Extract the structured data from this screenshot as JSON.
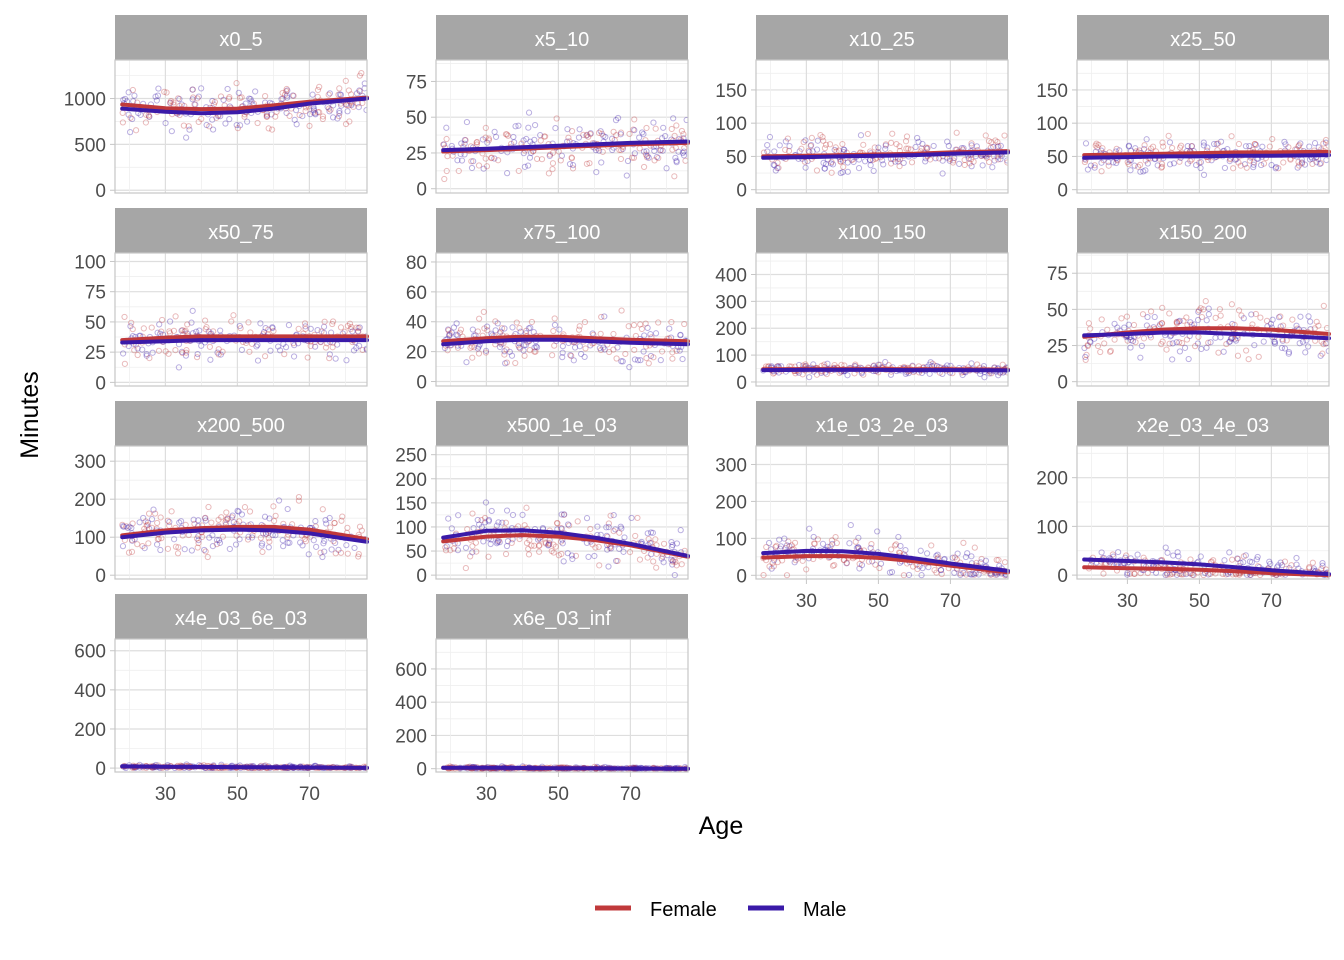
{
  "chart_data": {
    "type": "scatter",
    "xlabel": "Age",
    "ylabel": "Minutes",
    "xlim": [
      16,
      86
    ],
    "x_ticks": [
      30,
      50,
      70
    ],
    "legend_position": "bottom",
    "grid": true,
    "colors": {
      "Female": "#c0393b",
      "Male": "#3a1aa8"
    },
    "legend": [
      {
        "name": "Female",
        "color": "#c0393b"
      },
      {
        "name": "Male",
        "color": "#3a1aa8"
      }
    ],
    "series_x": [
      18,
      30,
      40,
      50,
      60,
      70,
      86
    ],
    "panels": [
      {
        "title": "x0_5",
        "ylim": [
          -30,
          1420
        ],
        "y_ticks": [
          "0",
          "500",
          "1000"
        ],
        "y_tick_values": [
          0,
          500,
          1000
        ],
        "scatter_center": 900,
        "scatter_spread": 170,
        "female": [
          935,
          895,
          885,
          890,
          925,
          965,
          1010
        ],
        "male": [
          890,
          855,
          840,
          850,
          890,
          945,
          1000
        ]
      },
      {
        "title": "x5_10",
        "ylim": [
          -3,
          90
        ],
        "y_ticks": [
          "0",
          "25",
          "50",
          "75"
        ],
        "y_tick_values": [
          0,
          25,
          50,
          75
        ],
        "scatter_center": 28,
        "scatter_spread": 13,
        "female": [
          26,
          27,
          28,
          29,
          30,
          31,
          32
        ],
        "male": [
          27,
          28,
          29,
          30,
          31,
          32,
          33
        ]
      },
      {
        "title": "x10_25",
        "ylim": [
          -5,
          195
        ],
        "y_ticks": [
          "0",
          "50",
          "100",
          "150"
        ],
        "y_tick_values": [
          0,
          50,
          100,
          150
        ],
        "scatter_center": 52,
        "scatter_spread": 18,
        "female": [
          50,
          51,
          52,
          53,
          54,
          56,
          58
        ],
        "male": [
          48,
          49,
          50,
          51,
          52,
          54,
          56
        ]
      },
      {
        "title": "x25_50",
        "ylim": [
          -5,
          195
        ],
        "y_ticks": [
          "0",
          "50",
          "100",
          "150"
        ],
        "y_tick_values": [
          0,
          50,
          100,
          150
        ],
        "scatter_center": 52,
        "scatter_spread": 17,
        "female": [
          52,
          53,
          54,
          55,
          56,
          56,
          57
        ],
        "male": [
          48,
          49,
          50,
          50,
          51,
          51,
          52
        ]
      },
      {
        "title": "x50_75",
        "ylim": [
          -3,
          107
        ],
        "y_ticks": [
          "0",
          "25",
          "50",
          "75",
          "100"
        ],
        "y_tick_values": [
          0,
          25,
          50,
          75,
          100
        ],
        "scatter_center": 36,
        "scatter_spread": 12,
        "female": [
          35,
          37,
          38,
          38,
          38,
          38,
          38
        ],
        "male": [
          33,
          34,
          35,
          35,
          35,
          35,
          35
        ]
      },
      {
        "title": "x75_100",
        "ylim": [
          -3,
          86
        ],
        "y_ticks": [
          "0",
          "20",
          "40",
          "60",
          "80"
        ],
        "y_tick_values": [
          0,
          20,
          40,
          60,
          80
        ],
        "scatter_center": 28,
        "scatter_spread": 10,
        "female": [
          27,
          29,
          30,
          30,
          29,
          28,
          27
        ],
        "male": [
          25,
          27,
          28,
          28,
          27,
          26,
          25
        ]
      },
      {
        "title": "x100_150",
        "ylim": [
          -15,
          480
        ],
        "y_ticks": [
          "0",
          "100",
          "200",
          "300",
          "400"
        ],
        "y_tick_values": [
          0,
          100,
          200,
          300,
          400
        ],
        "scatter_center": 48,
        "scatter_spread": 15,
        "female": [
          47,
          48,
          48,
          48,
          47,
          47,
          46
        ],
        "male": [
          44,
          45,
          45,
          45,
          44,
          44,
          43
        ]
      },
      {
        "title": "x150_200",
        "ylim": [
          -3,
          89
        ],
        "y_ticks": [
          "0",
          "25",
          "50",
          "75"
        ],
        "y_tick_values": [
          0,
          25,
          50,
          75
        ],
        "scatter_center": 33,
        "scatter_spread": 12,
        "female": [
          31,
          34,
          36,
          37,
          37,
          36,
          33
        ],
        "male": [
          32,
          33,
          34,
          34,
          33,
          32,
          30
        ]
      },
      {
        "title": "x200_500",
        "ylim": [
          -10,
          340
        ],
        "y_ticks": [
          "0",
          "100",
          "200",
          "300"
        ],
        "y_tick_values": [
          0,
          100,
          200,
          300
        ],
        "scatter_center": 118,
        "scatter_spread": 42,
        "female": [
          105,
          118,
          124,
          127,
          127,
          120,
          95
        ],
        "male": [
          100,
          112,
          118,
          120,
          118,
          110,
          88
        ]
      },
      {
        "title": "x500_1e_03",
        "ylim": [
          -8,
          268
        ],
        "y_ticks": [
          "0",
          "50",
          "100",
          "150",
          "200",
          "250"
        ],
        "y_tick_values": [
          0,
          50,
          100,
          150,
          200,
          250
        ],
        "scatter_center": 80,
        "scatter_spread": 38,
        "female": [
          70,
          80,
          83,
          80,
          73,
          62,
          38
        ],
        "male": [
          78,
          92,
          93,
          88,
          78,
          65,
          40
        ]
      },
      {
        "title": "x1e_03_2e_03",
        "ylim": [
          -10,
          350
        ],
        "y_ticks": [
          "0",
          "100",
          "200",
          "300"
        ],
        "y_tick_values": [
          0,
          100,
          200,
          300
        ],
        "scatter_center": 55,
        "scatter_spread": 35,
        "female": [
          48,
          52,
          52,
          47,
          38,
          26,
          8
        ],
        "male": [
          60,
          66,
          65,
          58,
          46,
          32,
          12
        ]
      },
      {
        "title": "x2e_03_4e_03",
        "ylim": [
          -8,
          265
        ],
        "y_ticks": [
          "0",
          "100",
          "200"
        ],
        "y_tick_values": [
          0,
          100,
          200
        ],
        "scatter_center": 25,
        "scatter_spread": 20,
        "female": [
          16,
          14,
          13,
          11,
          8,
          4,
          0
        ],
        "male": [
          32,
          29,
          26,
          22,
          16,
          10,
          2
        ]
      },
      {
        "title": "x4e_03_6e_03",
        "ylim": [
          -20,
          660
        ],
        "y_ticks": [
          "0",
          "200",
          "400",
          "600"
        ],
        "y_tick_values": [
          0,
          200,
          400,
          600
        ],
        "scatter_center": 6,
        "scatter_spread": 7,
        "female": [
          8,
          6,
          5,
          4,
          3,
          2,
          1
        ],
        "male": [
          9,
          7,
          6,
          5,
          4,
          3,
          1
        ]
      },
      {
        "title": "x6e_03_inf",
        "ylim": [
          -20,
          780
        ],
        "y_ticks": [
          "0",
          "200",
          "400",
          "600"
        ],
        "y_tick_values": [
          0,
          200,
          400,
          600
        ],
        "scatter_center": 5,
        "scatter_spread": 6,
        "female": [
          5,
          4,
          3,
          3,
          2,
          1,
          0
        ],
        "male": [
          6,
          5,
          4,
          3,
          2,
          1,
          0
        ]
      }
    ]
  }
}
